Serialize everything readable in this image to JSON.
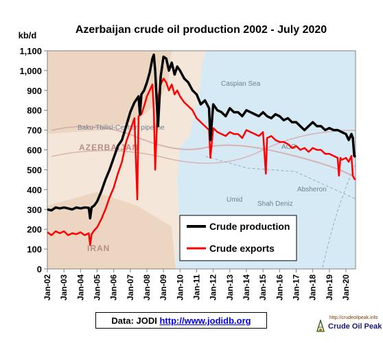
{
  "chart_data": {
    "type": "line",
    "title": "Azerbaijan crude oil production 2002 - July 2020",
    "ylabel": "kb/d",
    "xlabel": "",
    "ylim": [
      0,
      1100
    ],
    "yticks": [
      0,
      100,
      200,
      300,
      400,
      500,
      600,
      700,
      800,
      900,
      1000,
      1100
    ],
    "ytick_labels": [
      "0",
      "100",
      "200",
      "300",
      "400",
      "500",
      "600",
      "700",
      "800",
      "900",
      "1,000",
      "1,100"
    ],
    "xlim": [
      2002.0,
      2020.58
    ],
    "xticks": [
      2002,
      2003,
      2004,
      2005,
      2006,
      2007,
      2008,
      2009,
      2010,
      2011,
      2012,
      2013,
      2014,
      2015,
      2016,
      2017,
      2018,
      2019,
      2020
    ],
    "xtick_labels": [
      "Jan-02",
      "Jan-03",
      "Jan-04",
      "Jan-05",
      "Jan-06",
      "Jan-07",
      "Jan-08",
      "Jan-09",
      "Jan-10",
      "Jan-11",
      "Jan-12",
      "Jan-13",
      "Jan-14",
      "Jan-15",
      "Jan-16",
      "Jan-17",
      "Jan-18",
      "Jan-19",
      "Jan-20"
    ],
    "grid": false,
    "legend_position": "lower-right",
    "background": "map of the Caspian region",
    "series": [
      {
        "name": "Crude production",
        "color": "#000000",
        "x": [
          2002.0,
          2002.25,
          2002.5,
          2002.75,
          2003.0,
          2003.25,
          2003.5,
          2003.75,
          2004.0,
          2004.25,
          2004.5,
          2004.58,
          2004.67,
          2004.83,
          2005.0,
          2005.25,
          2005.5,
          2005.75,
          2006.0,
          2006.25,
          2006.5,
          2006.75,
          2007.0,
          2007.25,
          2007.5,
          2007.58,
          2007.67,
          2007.83,
          2008.0,
          2008.17,
          2008.33,
          2008.42,
          2008.5,
          2008.67,
          2008.83,
          2009.0,
          2009.17,
          2009.33,
          2009.5,
          2009.67,
          2009.83,
          2010.0,
          2010.25,
          2010.5,
          2010.75,
          2011.0,
          2011.25,
          2011.5,
          2011.75,
          2011.83,
          2012.0,
          2012.25,
          2012.5,
          2012.75,
          2013.0,
          2013.25,
          2013.5,
          2013.75,
          2014.0,
          2014.25,
          2014.5,
          2014.75,
          2015.0,
          2015.25,
          2015.5,
          2015.75,
          2016.0,
          2016.25,
          2016.5,
          2016.75,
          2017.0,
          2017.25,
          2017.5,
          2017.75,
          2018.0,
          2018.25,
          2018.5,
          2018.75,
          2019.0,
          2019.25,
          2019.5,
          2019.75,
          2020.0,
          2020.17,
          2020.33,
          2020.42,
          2020.5,
          2020.58
        ],
        "values": [
          300,
          295,
          310,
          305,
          310,
          305,
          300,
          310,
          305,
          310,
          308,
          255,
          310,
          320,
          340,
          390,
          450,
          500,
          560,
          620,
          650,
          720,
          790,
          840,
          870,
          780,
          880,
          900,
          940,
          990,
          1060,
          1080,
          1000,
          720,
          970,
          1070,
          1060,
          1000,
          1040,
          980,
          1020,
          1000,
          960,
          940,
          900,
          880,
          830,
          850,
          810,
          650,
          830,
          800,
          790,
          770,
          810,
          790,
          790,
          770,
          800,
          790,
          780,
          770,
          790,
          770,
          760,
          780,
          770,
          750,
          760,
          740,
          740,
          720,
          700,
          720,
          740,
          720,
          720,
          700,
          710,
          700,
          700,
          690,
          680,
          650,
          680,
          660,
          570,
          565
        ]
      },
      {
        "name": "Crude exports",
        "color": "#ff0000",
        "x": [
          2002.0,
          2002.25,
          2002.5,
          2002.75,
          2003.0,
          2003.25,
          2003.5,
          2003.75,
          2004.0,
          2004.25,
          2004.5,
          2004.58,
          2004.67,
          2004.83,
          2005.0,
          2005.25,
          2005.5,
          2005.75,
          2006.0,
          2006.25,
          2006.5,
          2006.75,
          2007.0,
          2007.25,
          2007.42,
          2007.5,
          2007.67,
          2007.83,
          2008.0,
          2008.17,
          2008.33,
          2008.42,
          2008.5,
          2008.67,
          2008.83,
          2009.0,
          2009.17,
          2009.33,
          2009.5,
          2009.67,
          2009.83,
          2010.0,
          2010.25,
          2010.5,
          2010.75,
          2011.0,
          2011.25,
          2011.5,
          2011.75,
          2011.83,
          2012.0,
          2012.25,
          2012.5,
          2012.75,
          2013.0,
          2013.25,
          2013.5,
          2013.75,
          2014.0,
          2014.25,
          2014.5,
          2014.75,
          2015.0,
          2015.17,
          2015.25,
          2015.5,
          2015.75,
          2016.0,
          2016.25,
          2016.5,
          2016.75,
          2017.0,
          2017.25,
          2017.5,
          2017.75,
          2018.0,
          2018.25,
          2018.5,
          2018.75,
          2019.0,
          2019.25,
          2019.5,
          2019.58,
          2019.67,
          2019.75,
          2020.0,
          2020.17,
          2020.33,
          2020.42,
          2020.5,
          2020.58
        ],
        "values": [
          185,
          170,
          190,
          180,
          190,
          170,
          180,
          175,
          185,
          170,
          180,
          120,
          175,
          195,
          210,
          250,
          300,
          360,
          410,
          480,
          540,
          640,
          700,
          760,
          350,
          770,
          780,
          820,
          870,
          900,
          930,
          800,
          500,
          860,
          930,
          960,
          940,
          900,
          930,
          880,
          900,
          870,
          840,
          820,
          800,
          760,
          740,
          720,
          700,
          560,
          710,
          690,
          680,
          670,
          690,
          680,
          680,
          660,
          700,
          690,
          680,
          670,
          690,
          480,
          660,
          670,
          650,
          640,
          640,
          630,
          610,
          620,
          600,
          610,
          590,
          610,
          600,
          600,
          580,
          580,
          570,
          560,
          470,
          560,
          550,
          560,
          540,
          570,
          470,
          455,
          450
        ]
      }
    ],
    "map_labels": [
      "Caspian Sea",
      "AZERBAIJAN",
      "IRAN",
      "Baku-Tbilisi-Ceyhan pipeline",
      "ACG",
      "Umid",
      "Shah Deniz",
      "Absheron"
    ]
  },
  "source": {
    "prefix": "Data: JODI",
    "url": "http://www.jodidb.org"
  },
  "logo": {
    "url": "http://crudeoilpeak.info",
    "name": "Crude Oil Peak"
  }
}
